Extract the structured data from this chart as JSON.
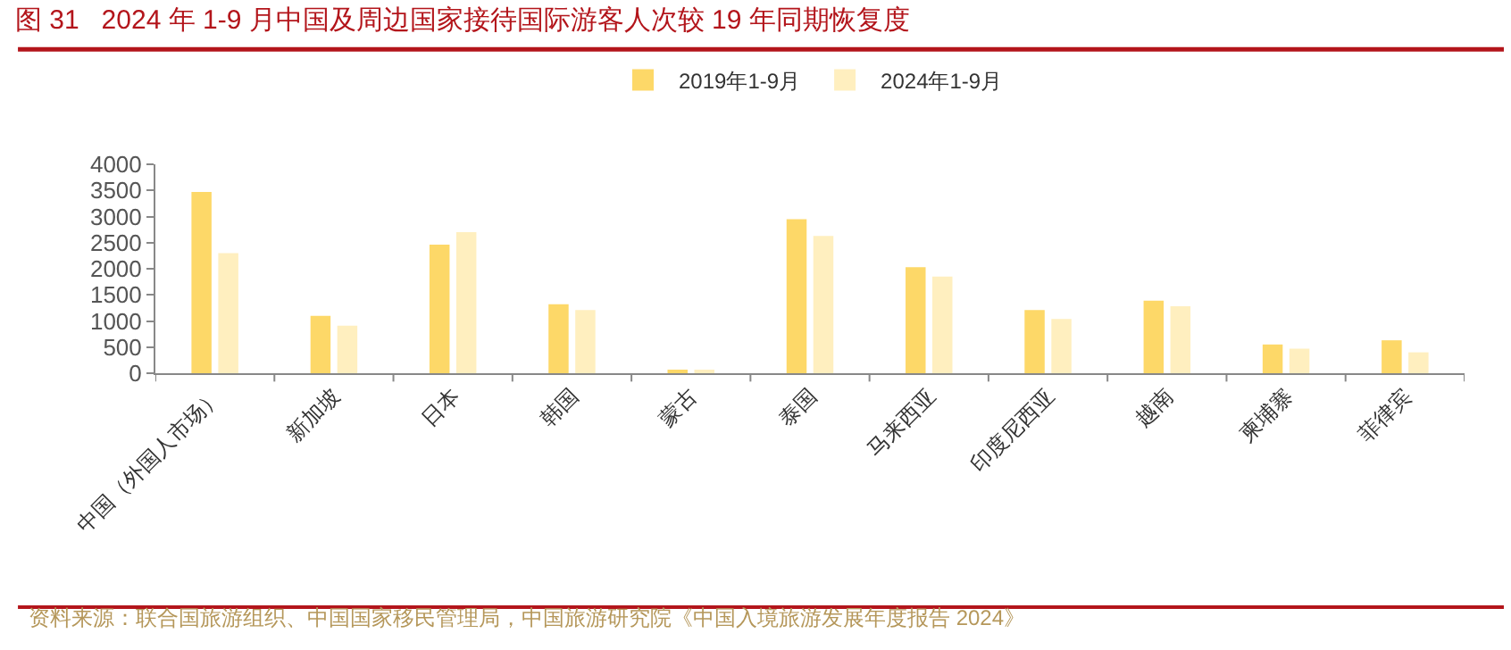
{
  "chart_data": {
    "type": "bar",
    "title": "图 31   2024 年 1-9 月中国及周边国家接待国际游客人次较 19 年同期恢复度",
    "categories": [
      "中国（外国人市场）",
      "新加坡",
      "日本",
      "韩国",
      "蒙古",
      "泰国",
      "马来西亚",
      "印度尼西亚",
      "越南",
      "柬埔寨",
      "菲律宾"
    ],
    "series": [
      {
        "name": "2019年1-9月",
        "color": "#fdd868",
        "values": [
          3470,
          1100,
          2460,
          1320,
          50,
          2950,
          2030,
          1210,
          1390,
          550,
          630
        ]
      },
      {
        "name": "2024年1-9月",
        "color": "#ffefbf",
        "values": [
          2300,
          910,
          2700,
          1210,
          40,
          2630,
          1850,
          1040,
          1280,
          470,
          400
        ]
      }
    ],
    "ylim": [
      0,
      4000
    ],
    "yticks": [
      0,
      500,
      1000,
      1500,
      2000,
      2500,
      3000,
      3500,
      4000
    ],
    "grid": false,
    "legend": "top",
    "annotations": [
      "资料来源：联合国旅游组织、中国国家移民管理局，中国旅游研究院《中国入境旅游发展年度报告 2024》"
    ]
  }
}
